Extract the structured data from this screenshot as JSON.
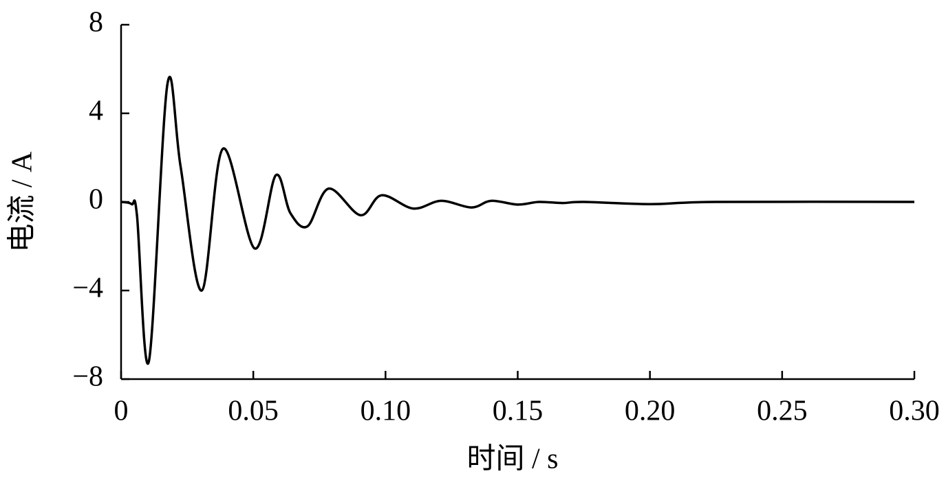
{
  "chart_data": {
    "type": "line",
    "x_label": "时间 / s",
    "y_label": "电流 / A",
    "x": [
      0,
      0.004,
      0.006,
      0.0105,
      0.0175,
      0.0225,
      0.0305,
      0.0385,
      0.0505,
      0.0585,
      0.064,
      0.0705,
      0.0785,
      0.0905,
      0.0985,
      0.1105,
      0.121,
      0.1325,
      0.14,
      0.15,
      0.158,
      0.167,
      0.175,
      0.2,
      0.225,
      0.3
    ],
    "series": [
      {
        "name": "电流",
        "color": "#000000",
        "values": [
          0,
          -0.1,
          -0.6,
          -7.2,
          5.3,
          1.6,
          -4.0,
          2.4,
          -2.1,
          1.2,
          -0.5,
          -1.1,
          0.6,
          -0.6,
          0.3,
          -0.3,
          0.05,
          -0.25,
          0.05,
          -0.12,
          0,
          -0.05,
          0,
          -0.1,
          0,
          0
        ]
      }
    ],
    "xlim": [
      0,
      0.3
    ],
    "xticks": [
      0,
      0.05,
      {
        "value": 0.1,
        "label": "0.10"
      },
      0.15,
      {
        "value": 0.2,
        "label": "0.20"
      },
      0.25,
      {
        "value": 0.3,
        "label": "0.30"
      }
    ],
    "ylim": [
      -8,
      8
    ],
    "yticks": [
      {
        "value": -8,
        "label": "−8"
      },
      {
        "value": -4,
        "label": "−4"
      },
      0,
      4,
      8
    ],
    "grid": false
  }
}
